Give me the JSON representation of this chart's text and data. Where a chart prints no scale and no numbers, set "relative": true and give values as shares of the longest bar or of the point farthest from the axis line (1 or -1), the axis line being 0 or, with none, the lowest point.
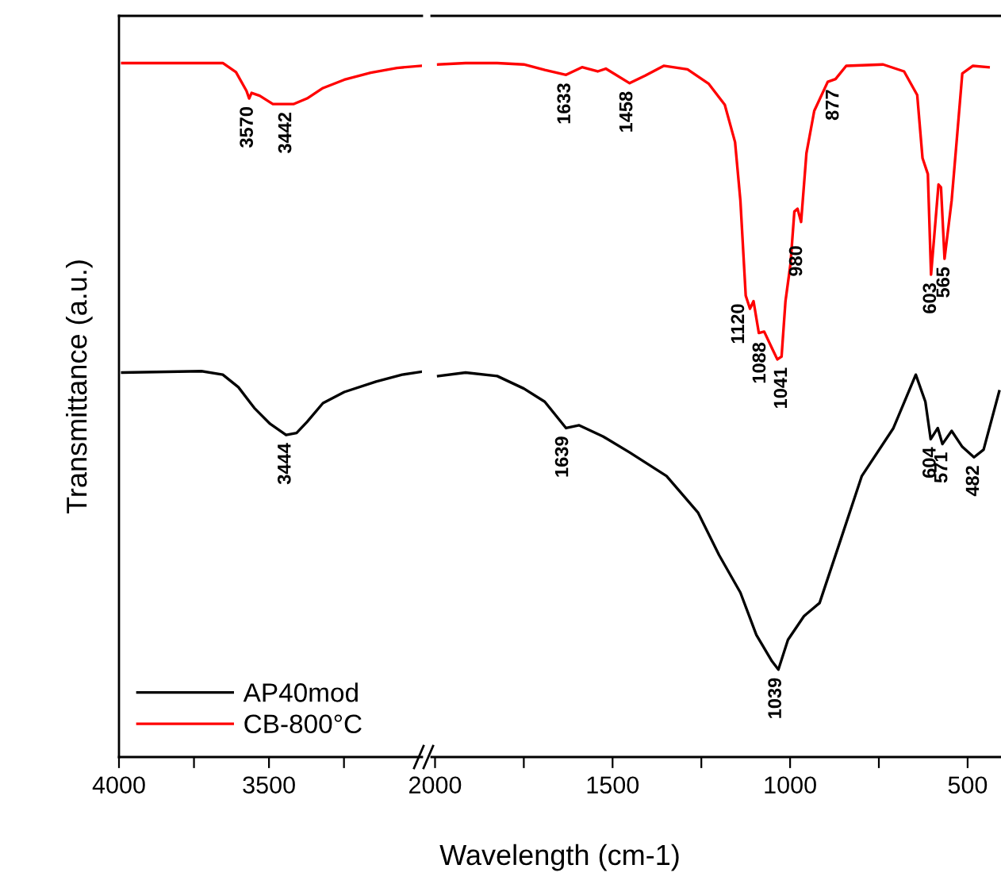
{
  "chart_data": [
    {
      "type": "line",
      "relative": true,
      "xlabel": "Wavelength (cm-1)",
      "ylabel": "Transmittance (a.u.)",
      "legend": "bottom left",
      "xlim": [
        4000,
        2990
      ],
      "xticks": [
        4000,
        3500,
        {
          "value": 3750,
          "label": null
        },
        {
          "value": 3250,
          "label": null
        }
      ],
      "grid": false,
      "series": [
        {
          "name": "AP40mod",
          "color": "#000000",
          "x": [
            3989,
            3725,
            3654,
            3602,
            3549,
            3496,
            3443,
            3408,
            3373,
            3320,
            3249,
            3143,
            3056,
            2994
          ],
          "values": [
            0.554,
            0.556,
            0.551,
            0.533,
            0.503,
            0.48,
            0.464,
            0.467,
            0.483,
            0.51,
            0.526,
            0.541,
            0.551,
            0.555
          ]
        },
        {
          "name": "CB-800°C",
          "color": "#ff0000",
          "x": [
            3989,
            3654,
            3610,
            3575,
            3566,
            3558,
            3531,
            3487,
            3417,
            3373,
            3320,
            3249,
            3161,
            3073,
            2994
          ],
          "values": [
            1.0,
            1.0,
            0.987,
            0.96,
            0.949,
            0.957,
            0.953,
            0.941,
            0.941,
            0.949,
            0.964,
            0.976,
            0.986,
            0.993,
            0.996
          ]
        }
      ],
      "annotations": [
        {
          "text": "3570",
          "x": 3570,
          "y": 0.949
        },
        {
          "text": "3442",
          "x": 3442,
          "y": 0.941
        },
        {
          "text": "3444",
          "x": 3444,
          "y": 0.464
        }
      ]
    },
    {
      "type": "line",
      "relative": true,
      "tick_labels": "x",
      "xlim": [
        2010,
        406
      ],
      "xticks": [
        2000,
        1500,
        1000,
        500,
        {
          "value": 1750,
          "label": null
        },
        {
          "value": 1250,
          "label": null
        },
        {
          "value": 750,
          "label": null
        }
      ],
      "grid": false,
      "series": [
        {
          "color": "#000000",
          "x": [
            1991,
            1914,
            1825,
            1750,
            1691,
            1631,
            1594,
            1527,
            1452,
            1348,
            1259,
            1200,
            1140,
            1095,
            1051,
            1033,
            1006,
            961,
            917,
            857,
            798,
            709,
            646,
            619,
            604,
            584,
            571,
            545,
            515,
            482,
            455,
            411
          ],
          "values": [
            0.549,
            0.554,
            0.549,
            0.531,
            0.512,
            0.474,
            0.478,
            0.462,
            0.439,
            0.405,
            0.352,
            0.291,
            0.237,
            0.176,
            0.138,
            0.126,
            0.169,
            0.203,
            0.222,
            0.314,
            0.405,
            0.474,
            0.551,
            0.512,
            0.458,
            0.474,
            0.451,
            0.47,
            0.447,
            0.432,
            0.443,
            0.527
          ]
        },
        {
          "color": "#ff0000",
          "x": [
            1991,
            1914,
            1825,
            1750,
            1691,
            1631,
            1586,
            1542,
            1519,
            1452,
            1408,
            1356,
            1289,
            1229,
            1184,
            1155,
            1140,
            1125,
            1113,
            1103,
            1088,
            1073,
            1050,
            1036,
            1024,
            1013,
            999,
            988,
            979,
            969,
            954,
            932,
            894,
            872,
            842,
            738,
            679,
            642,
            627,
            612,
            603,
            582,
            575,
            565,
            545,
            530,
            515,
            485,
            441
          ],
          "values": [
            0.998,
            1.0,
            1.0,
            0.998,
            0.99,
            0.983,
            0.994,
            0.988,
            0.992,
            0.971,
            0.982,
            0.996,
            0.991,
            0.97,
            0.94,
            0.886,
            0.802,
            0.665,
            0.646,
            0.657,
            0.611,
            0.613,
            0.588,
            0.573,
            0.577,
            0.657,
            0.71,
            0.786,
            0.79,
            0.771,
            0.87,
            0.931,
            0.973,
            0.977,
            0.996,
            0.998,
            0.988,
            0.954,
            0.863,
            0.84,
            0.695,
            0.825,
            0.821,
            0.718,
            0.802,
            0.893,
            0.985,
            0.996,
            0.994
          ]
        }
      ],
      "annotations": [
        {
          "text": "1633",
          "x": 1633,
          "y": 0.983
        },
        {
          "text": "1458",
          "x": 1458,
          "y": 0.971
        },
        {
          "text": "877",
          "x": 877,
          "y": 0.977
        },
        {
          "text": "1120",
          "x": 1120,
          "y": 0.665
        },
        {
          "text": "1088",
          "x": 1088,
          "y": 0.611
        },
        {
          "text": "1041",
          "x": 1041,
          "y": 0.573
        },
        {
          "text": "980",
          "x": 980,
          "y": 0.79
        },
        {
          "text": "603",
          "x": 603,
          "y": 0.695
        },
        {
          "text": "565",
          "x": 565,
          "y": 0.718
        },
        {
          "text": "1639",
          "x": 1639,
          "y": 0.474
        },
        {
          "text": "1039",
          "x": 1039,
          "y": 0.126
        },
        {
          "text": "604",
          "x": 604,
          "y": 0.458
        },
        {
          "text": "571",
          "x": 571,
          "y": 0.451
        },
        {
          "text": "482",
          "x": 482,
          "y": 0.432
        }
      ]
    }
  ]
}
